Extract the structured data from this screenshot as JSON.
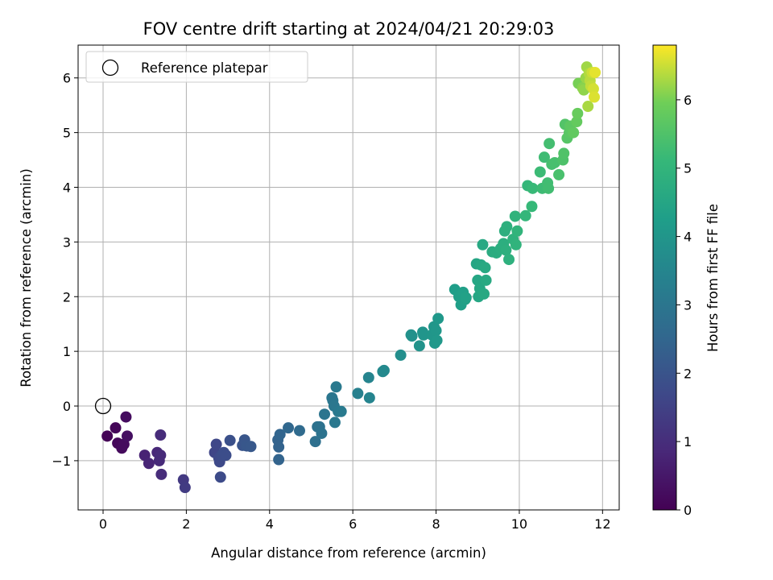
{
  "chart_data": {
    "type": "scatter",
    "title": "FOV centre drift starting at 2024/04/21 20:29:03",
    "xlabel": "Angular distance from reference (arcmin)",
    "ylabel": "Rotation from reference (arcmin)",
    "xlim": [
      -0.6,
      12.4
    ],
    "ylim": [
      -1.9,
      6.6
    ],
    "xticks": [
      0,
      2,
      4,
      6,
      8,
      10,
      12
    ],
    "yticks": [
      -1,
      0,
      1,
      2,
      3,
      4,
      5,
      6
    ],
    "grid": true,
    "legend": {
      "placement": "top-left",
      "entries": [
        {
          "label": "Reference platepar",
          "marker": "open-circle"
        }
      ]
    },
    "reference_point": {
      "x": 0,
      "y": 0
    },
    "colorbar": {
      "label": "Hours from first FF file",
      "min": 0,
      "max": 6.8,
      "ticks": [
        0,
        1,
        2,
        3,
        4,
        5,
        6
      ],
      "colormap": "viridis"
    },
    "points": [
      {
        "x": 0.1,
        "y": -0.55,
        "c": 0.05
      },
      {
        "x": 0.3,
        "y": -0.4,
        "c": 0.1
      },
      {
        "x": 0.35,
        "y": -0.68,
        "c": 0.15
      },
      {
        "x": 0.45,
        "y": -0.77,
        "c": 0.2
      },
      {
        "x": 0.5,
        "y": -0.7,
        "c": 0.22
      },
      {
        "x": 0.55,
        "y": -0.2,
        "c": 0.25
      },
      {
        "x": 0.58,
        "y": -0.55,
        "c": 0.3
      },
      {
        "x": 1.0,
        "y": -0.9,
        "c": 0.75
      },
      {
        "x": 1.1,
        "y": -1.05,
        "c": 0.8
      },
      {
        "x": 1.3,
        "y": -0.85,
        "c": 0.85
      },
      {
        "x": 1.35,
        "y": -1.0,
        "c": 0.9
      },
      {
        "x": 1.38,
        "y": -0.9,
        "c": 0.92
      },
      {
        "x": 1.38,
        "y": -0.53,
        "c": 0.95
      },
      {
        "x": 1.4,
        "y": -1.25,
        "c": 0.97
      },
      {
        "x": 1.93,
        "y": -1.35,
        "c": 1.3
      },
      {
        "x": 1.97,
        "y": -1.49,
        "c": 1.35
      },
      {
        "x": 2.68,
        "y": -0.85,
        "c": 1.6
      },
      {
        "x": 2.72,
        "y": -0.7,
        "c": 1.65
      },
      {
        "x": 2.78,
        "y": -0.95,
        "c": 1.7
      },
      {
        "x": 2.8,
        "y": -1.02,
        "c": 1.72
      },
      {
        "x": 2.82,
        "y": -1.3,
        "c": 1.75
      },
      {
        "x": 2.85,
        "y": -0.9,
        "c": 1.78
      },
      {
        "x": 2.9,
        "y": -0.85,
        "c": 1.8
      },
      {
        "x": 2.95,
        "y": -0.9,
        "c": 1.82
      },
      {
        "x": 3.05,
        "y": -0.63,
        "c": 1.9
      },
      {
        "x": 3.35,
        "y": -0.72,
        "c": 2.0
      },
      {
        "x": 3.4,
        "y": -0.62,
        "c": 2.05
      },
      {
        "x": 3.45,
        "y": -0.73,
        "c": 2.08
      },
      {
        "x": 3.55,
        "y": -0.74,
        "c": 2.1
      },
      {
        "x": 4.2,
        "y": -0.62,
        "c": 2.4
      },
      {
        "x": 4.22,
        "y": -0.75,
        "c": 2.42
      },
      {
        "x": 4.22,
        "y": -0.98,
        "c": 2.45
      },
      {
        "x": 4.25,
        "y": -0.52,
        "c": 2.47
      },
      {
        "x": 4.45,
        "y": -0.4,
        "c": 2.55
      },
      {
        "x": 4.72,
        "y": -0.45,
        "c": 2.65
      },
      {
        "x": 5.1,
        "y": -0.65,
        "c": 2.8
      },
      {
        "x": 5.15,
        "y": -0.38,
        "c": 2.85
      },
      {
        "x": 5.2,
        "y": -0.38,
        "c": 2.88
      },
      {
        "x": 5.25,
        "y": -0.5,
        "c": 2.9
      },
      {
        "x": 5.32,
        "y": -0.15,
        "c": 2.95
      },
      {
        "x": 5.5,
        "y": 0.15,
        "c": 3.0
      },
      {
        "x": 5.52,
        "y": 0.1,
        "c": 3.02
      },
      {
        "x": 5.55,
        "y": 0.0,
        "c": 3.05
      },
      {
        "x": 5.57,
        "y": -0.3,
        "c": 3.07
      },
      {
        "x": 5.6,
        "y": 0.35,
        "c": 3.1
      },
      {
        "x": 5.65,
        "y": -0.1,
        "c": 3.12
      },
      {
        "x": 5.72,
        "y": -0.1,
        "c": 3.15
      },
      {
        "x": 6.12,
        "y": 0.23,
        "c": 3.35
      },
      {
        "x": 6.38,
        "y": 0.52,
        "c": 3.45
      },
      {
        "x": 6.4,
        "y": 0.15,
        "c": 3.47
      },
      {
        "x": 6.72,
        "y": 0.63,
        "c": 3.6
      },
      {
        "x": 6.75,
        "y": 0.65,
        "c": 3.62
      },
      {
        "x": 7.15,
        "y": 0.93,
        "c": 3.75
      },
      {
        "x": 7.4,
        "y": 1.3,
        "c": 3.85
      },
      {
        "x": 7.42,
        "y": 1.28,
        "c": 3.87
      },
      {
        "x": 7.6,
        "y": 1.1,
        "c": 3.92
      },
      {
        "x": 7.68,
        "y": 1.35,
        "c": 3.95
      },
      {
        "x": 7.7,
        "y": 1.3,
        "c": 3.97
      },
      {
        "x": 7.9,
        "y": 1.3,
        "c": 4.0
      },
      {
        "x": 7.95,
        "y": 1.45,
        "c": 4.02
      },
      {
        "x": 7.97,
        "y": 1.15,
        "c": 4.03
      },
      {
        "x": 8.0,
        "y": 1.38,
        "c": 4.05
      },
      {
        "x": 8.02,
        "y": 1.2,
        "c": 4.06
      },
      {
        "x": 8.05,
        "y": 1.6,
        "c": 4.08
      },
      {
        "x": 8.45,
        "y": 2.13,
        "c": 4.25
      },
      {
        "x": 8.55,
        "y": 2.0,
        "c": 4.28
      },
      {
        "x": 8.6,
        "y": 1.85,
        "c": 4.3
      },
      {
        "x": 8.65,
        "y": 2.08,
        "c": 4.32
      },
      {
        "x": 8.7,
        "y": 1.95,
        "c": 4.33
      },
      {
        "x": 8.72,
        "y": 1.98,
        "c": 4.35
      },
      {
        "x": 8.97,
        "y": 2.6,
        "c": 4.5
      },
      {
        "x": 9.0,
        "y": 2.3,
        "c": 4.52
      },
      {
        "x": 9.02,
        "y": 2.0,
        "c": 4.53
      },
      {
        "x": 9.05,
        "y": 2.15,
        "c": 4.55
      },
      {
        "x": 9.08,
        "y": 2.58,
        "c": 4.56
      },
      {
        "x": 9.12,
        "y": 2.95,
        "c": 4.58
      },
      {
        "x": 9.15,
        "y": 2.05,
        "c": 4.6
      },
      {
        "x": 9.18,
        "y": 2.53,
        "c": 4.62
      },
      {
        "x": 9.2,
        "y": 2.3,
        "c": 4.63
      },
      {
        "x": 9.35,
        "y": 2.82,
        "c": 4.7
      },
      {
        "x": 9.45,
        "y": 2.8,
        "c": 4.72
      },
      {
        "x": 9.55,
        "y": 2.88,
        "c": 4.75
      },
      {
        "x": 9.6,
        "y": 2.9,
        "c": 4.77
      },
      {
        "x": 9.62,
        "y": 2.97,
        "c": 4.78
      },
      {
        "x": 9.65,
        "y": 3.2,
        "c": 4.8
      },
      {
        "x": 9.68,
        "y": 2.85,
        "c": 4.82
      },
      {
        "x": 9.7,
        "y": 3.28,
        "c": 4.84
      },
      {
        "x": 9.75,
        "y": 2.68,
        "c": 4.86
      },
      {
        "x": 9.85,
        "y": 3.05,
        "c": 4.9
      },
      {
        "x": 9.9,
        "y": 3.47,
        "c": 4.93
      },
      {
        "x": 9.92,
        "y": 2.95,
        "c": 4.95
      },
      {
        "x": 9.95,
        "y": 3.2,
        "c": 4.97
      },
      {
        "x": 10.15,
        "y": 3.48,
        "c": 5.05
      },
      {
        "x": 10.2,
        "y": 4.03,
        "c": 5.08
      },
      {
        "x": 10.3,
        "y": 3.65,
        "c": 5.12
      },
      {
        "x": 10.32,
        "y": 3.98,
        "c": 5.14
      },
      {
        "x": 10.5,
        "y": 4.28,
        "c": 5.2
      },
      {
        "x": 10.55,
        "y": 3.98,
        "c": 5.22
      },
      {
        "x": 10.6,
        "y": 4.55,
        "c": 5.25
      },
      {
        "x": 10.68,
        "y": 4.08,
        "c": 5.28
      },
      {
        "x": 10.7,
        "y": 3.98,
        "c": 5.3
      },
      {
        "x": 10.72,
        "y": 4.8,
        "c": 5.32
      },
      {
        "x": 10.78,
        "y": 4.42,
        "c": 5.35
      },
      {
        "x": 10.85,
        "y": 4.45,
        "c": 5.38
      },
      {
        "x": 10.95,
        "y": 4.23,
        "c": 5.42
      },
      {
        "x": 11.05,
        "y": 4.5,
        "c": 5.48
      },
      {
        "x": 11.07,
        "y": 4.62,
        "c": 5.5
      },
      {
        "x": 11.1,
        "y": 5.15,
        "c": 5.55
      },
      {
        "x": 11.15,
        "y": 4.9,
        "c": 5.6
      },
      {
        "x": 11.2,
        "y": 5.0,
        "c": 5.65
      },
      {
        "x": 11.22,
        "y": 5.12,
        "c": 5.7
      },
      {
        "x": 11.3,
        "y": 5.0,
        "c": 5.75
      },
      {
        "x": 11.38,
        "y": 5.2,
        "c": 5.8
      },
      {
        "x": 11.4,
        "y": 5.35,
        "c": 5.85
      },
      {
        "x": 11.42,
        "y": 5.9,
        "c": 6.0
      },
      {
        "x": 11.52,
        "y": 5.82,
        "c": 6.1
      },
      {
        "x": 11.55,
        "y": 5.78,
        "c": 6.15
      },
      {
        "x": 11.6,
        "y": 6.0,
        "c": 6.2
      },
      {
        "x": 11.62,
        "y": 6.2,
        "c": 6.25
      },
      {
        "x": 11.65,
        "y": 5.48,
        "c": 6.3
      },
      {
        "x": 11.68,
        "y": 6.08,
        "c": 6.35
      },
      {
        "x": 11.7,
        "y": 5.95,
        "c": 6.4
      },
      {
        "x": 11.72,
        "y": 5.85,
        "c": 6.45
      },
      {
        "x": 11.75,
        "y": 6.1,
        "c": 6.5
      },
      {
        "x": 11.78,
        "y": 5.8,
        "c": 6.55
      },
      {
        "x": 11.8,
        "y": 5.65,
        "c": 6.6
      },
      {
        "x": 11.82,
        "y": 6.1,
        "c": 6.65
      }
    ]
  }
}
